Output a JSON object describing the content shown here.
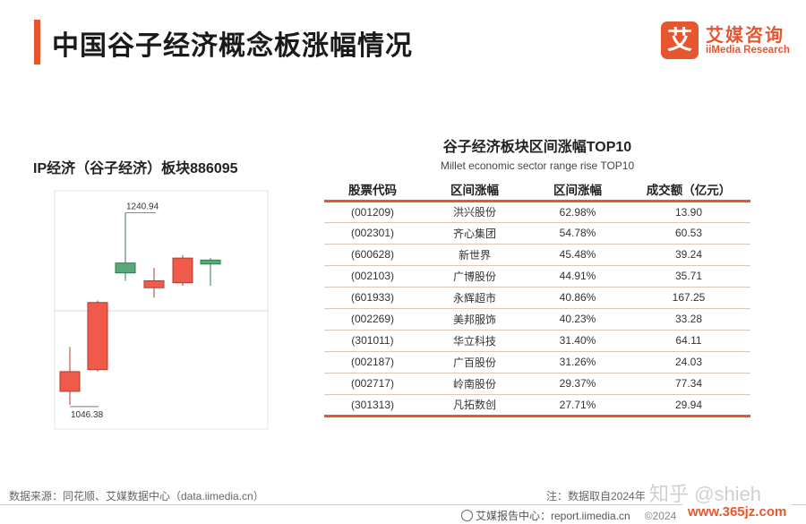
{
  "header": {
    "title": "中国谷子经济概念板涨幅情况",
    "logo_mark": "艾",
    "logo_cn": "艾媒咨询",
    "logo_en": "iiMedia Research"
  },
  "chart_data": [
    {
      "type": "candlestick",
      "title": "IP经济（谷子经济）板块886095",
      "annotations": [
        "1240.94",
        "1046.38"
      ],
      "candles": [
        {
          "open": 1060,
          "close": 1080,
          "high": 1105,
          "low": 1046.38,
          "direction": "up"
        },
        {
          "open": 1082,
          "close": 1150,
          "high": 1152,
          "low": 1080,
          "direction": "up"
        },
        {
          "open": 1190,
          "close": 1180,
          "high": 1240.94,
          "low": 1172,
          "direction": "down"
        },
        {
          "open": 1165,
          "close": 1172,
          "high": 1185,
          "low": 1155,
          "direction": "up"
        },
        {
          "open": 1170,
          "close": 1195,
          "high": 1198,
          "low": 1167,
          "direction": "up"
        },
        {
          "open": 1193,
          "close": 1189,
          "high": 1195,
          "low": 1167,
          "direction": "down"
        }
      ],
      "colors": {
        "up": "#ef5a4b",
        "down": "#5aa878"
      }
    },
    {
      "type": "table",
      "title": "谷子经济板块区间涨幅TOP10",
      "subtitle": "Millet economic sector range rise TOP10",
      "columns": [
        "股票代码",
        "区间涨幅",
        "区间涨幅",
        "成交额（亿元）"
      ],
      "rows": [
        [
          "(001209)",
          "洪兴股份",
          "62.98%",
          "13.90"
        ],
        [
          "(002301)",
          "齐心集团",
          "54.78%",
          "60.53"
        ],
        [
          "(600628)",
          "新世界",
          "45.48%",
          "39.24"
        ],
        [
          "(002103)",
          "广博股份",
          "44.91%",
          "35.71"
        ],
        [
          "(601933)",
          "永辉超市",
          "40.86%",
          "167.25"
        ],
        [
          "(002269)",
          "美邦服饰",
          "40.23%",
          "33.28"
        ],
        [
          "(301011)",
          "华立科技",
          "31.40%",
          "64.11"
        ],
        [
          "(002187)",
          "广百股份",
          "31.26%",
          "24.03"
        ],
        [
          "(002717)",
          "岭南股份",
          "29.37%",
          "77.34"
        ],
        [
          "(301313)",
          "凡拓数创",
          "27.71%",
          "29.94"
        ]
      ]
    }
  ],
  "footer": {
    "source": "数据来源：同花顺、艾媒数据中心（data.iimedia.cn）",
    "note": "注：数据取自2024年",
    "watermark": "知乎 @shieh",
    "report_center": "艾媒报告中心：report.iimedia.cn",
    "copyright": "©2024",
    "site": "www.365jz.com"
  },
  "colors": {
    "accent": "#e8562f"
  }
}
